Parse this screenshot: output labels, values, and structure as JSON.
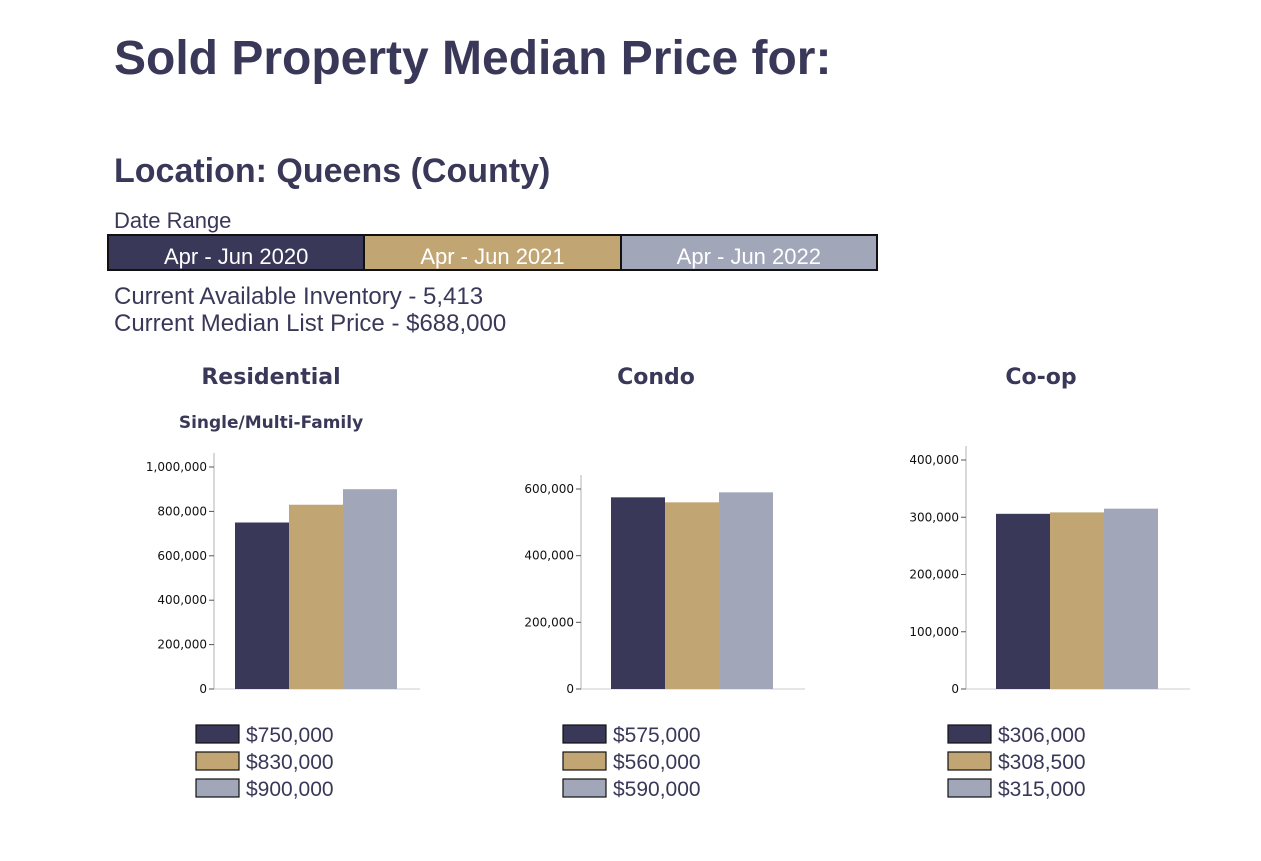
{
  "page": {
    "title": "Sold Property Median Price for:",
    "location": "Location: Queens (County)",
    "date_range_label": "Date Range",
    "periods": [
      "Apr - Jun 2020",
      "Apr - Jun 2021",
      "Apr - Jun 2022"
    ],
    "inventory": "Current Available Inventory - 5,413",
    "median_list": "Current Median List Price - $688,000"
  },
  "colors": {
    "period_2020": "#3a3858",
    "period_2021": "#c1a674",
    "period_2022": "#a1a6b9",
    "text": "#3a3858"
  },
  "chart_data": [
    {
      "type": "bar",
      "title": "Residential",
      "subtitle": "Single/Multi-Family",
      "categories": [
        "Apr - Jun 2020",
        "Apr - Jun 2021",
        "Apr - Jun 2022"
      ],
      "values": [
        750000,
        830000,
        900000
      ],
      "ylim": [
        0,
        1000000
      ],
      "yticks": [
        0,
        200000,
        400000,
        600000,
        800000,
        1000000
      ],
      "ytick_labels": [
        "0",
        "200,000",
        "400,000",
        "600,000",
        "800,000",
        "1,000,000"
      ],
      "legend_labels": [
        "$750,000",
        "$830,000",
        "$900,000"
      ],
      "legend_position": "bottom"
    },
    {
      "type": "bar",
      "title": "Condo",
      "subtitle": "",
      "categories": [
        "Apr - Jun 2020",
        "Apr - Jun 2021",
        "Apr - Jun 2022"
      ],
      "values": [
        575000,
        560000,
        590000
      ],
      "ylim": [
        0,
        600000
      ],
      "yticks": [
        0,
        200000,
        400000,
        600000
      ],
      "ytick_labels": [
        "0",
        "200,000",
        "400,000",
        "600,000"
      ],
      "legend_labels": [
        "$575,000",
        "$560,000",
        "$590,000"
      ],
      "legend_position": "bottom"
    },
    {
      "type": "bar",
      "title": "Co-op",
      "subtitle": "",
      "categories": [
        "Apr - Jun 2020",
        "Apr - Jun 2021",
        "Apr - Jun 2022"
      ],
      "values": [
        306000,
        308500,
        315000
      ],
      "ylim": [
        0,
        400000
      ],
      "yticks": [
        0,
        100000,
        200000,
        300000,
        400000
      ],
      "ytick_labels": [
        "0",
        "100,000",
        "200,000",
        "300,000",
        "400,000"
      ],
      "legend_labels": [
        "$306,000",
        "$308,500",
        "$315,000"
      ],
      "legend_position": "bottom"
    }
  ]
}
